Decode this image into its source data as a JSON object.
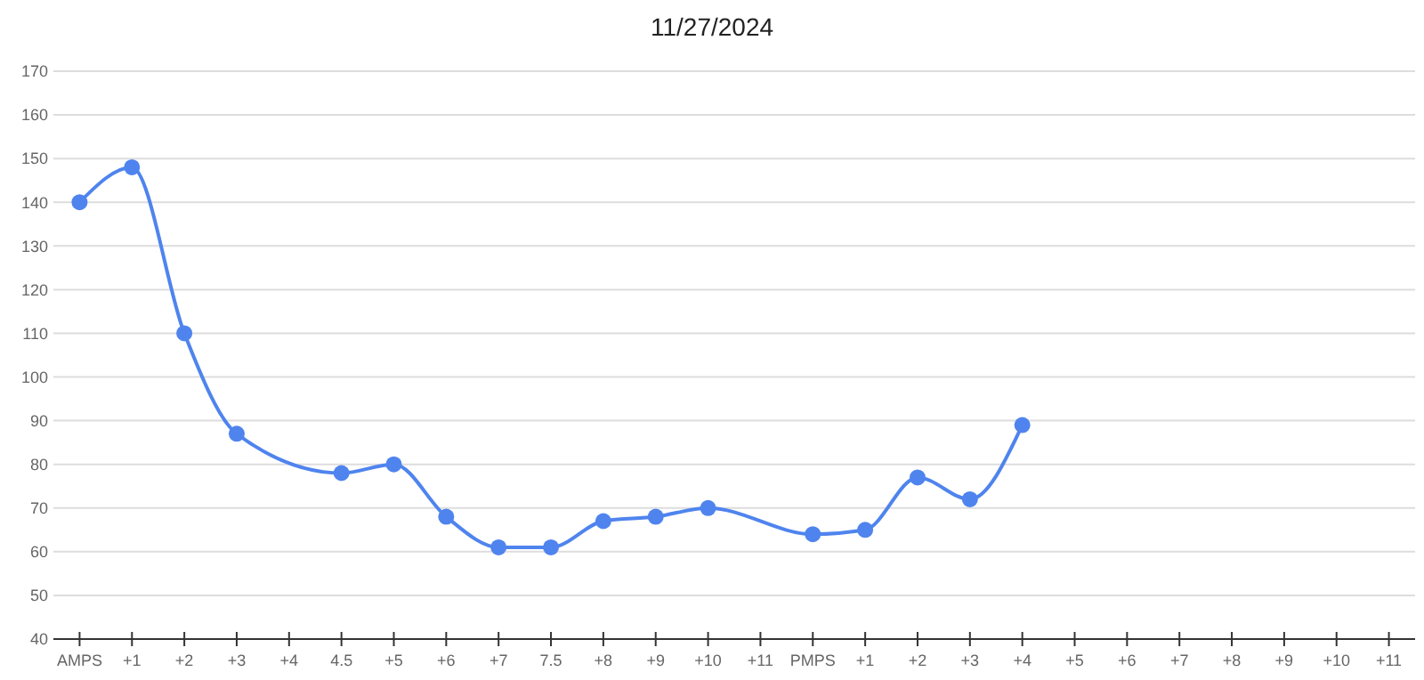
{
  "chart_data": {
    "type": "line",
    "title": "11/27/2024",
    "categories": [
      "AMPS",
      "+1",
      "+2",
      "+3",
      "+4",
      "4.5",
      "+5",
      "+6",
      "+7",
      "7.5",
      "+8",
      "+9",
      "+10",
      "+11",
      "PMPS",
      "+1",
      "+2",
      "+3",
      "+4",
      "+5",
      "+6",
      "+7",
      "+8",
      "+9",
      "+10",
      "+11"
    ],
    "series": [
      {
        "color": "#4f84ee",
        "values": [
          140,
          148,
          110,
          87,
          null,
          78,
          80,
          68,
          61,
          61,
          67,
          68,
          70,
          null,
          64,
          65,
          77,
          72,
          89,
          null,
          null,
          null,
          null,
          null,
          null,
          null
        ]
      }
    ],
    "ylim": [
      40,
      170
    ],
    "yticks": [
      40,
      50,
      60,
      70,
      80,
      90,
      100,
      110,
      120,
      130,
      140,
      150,
      160,
      170
    ],
    "grid": "y",
    "marker": "circle"
  }
}
